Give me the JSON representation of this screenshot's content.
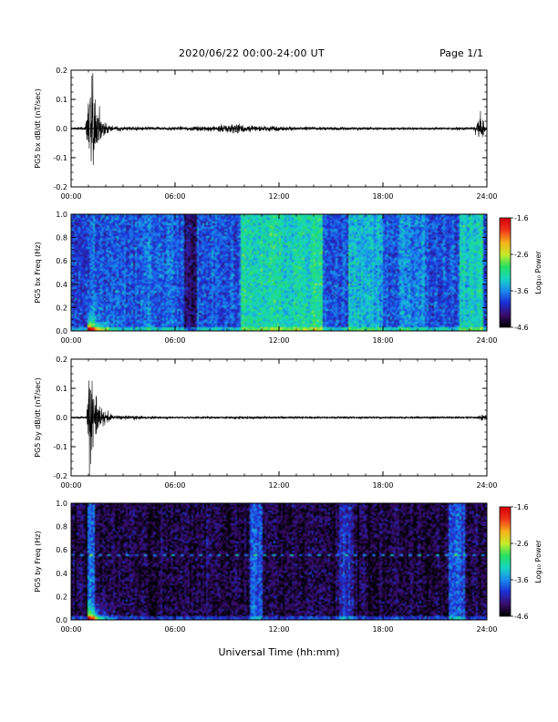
{
  "header": {
    "title": "2020/06/22  00:00-24:00 UT",
    "page": "Page 1/1"
  },
  "x_caption": "Universal Time (hh:mm)",
  "colormap": [
    "#000000",
    "#3a0d6e",
    "#1c2fd6",
    "#1a8cf0",
    "#17d6c2",
    "#27e060",
    "#c8ec2a",
    "#f6b21c",
    "#f0361a",
    "#d8000a"
  ],
  "chart_data": [
    {
      "type": "line",
      "ylabel": "PG5 bx dB/dt (nT/sec)",
      "x_ticks": [
        "00:00",
        "06:00",
        "12:00",
        "18:00",
        "24:00"
      ],
      "x_range_hours": [
        0,
        24
      ],
      "y_ticks": [
        "0.2",
        "0.1",
        "0.0",
        "-0.1",
        "-0.2"
      ],
      "ylim": [
        -0.2,
        0.2
      ],
      "envelope": [
        {
          "t": 0.0,
          "amp": 0.004
        },
        {
          "t": 0.8,
          "amp": 0.006
        },
        {
          "t": 0.95,
          "amp": 0.12
        },
        {
          "t": 1.15,
          "amp": 0.19
        },
        {
          "t": 1.4,
          "amp": 0.12
        },
        {
          "t": 1.8,
          "amp": 0.03
        },
        {
          "t": 2.5,
          "amp": 0.008
        },
        {
          "t": 6.0,
          "amp": 0.006
        },
        {
          "t": 8.0,
          "amp": 0.01
        },
        {
          "t": 9.5,
          "amp": 0.018
        },
        {
          "t": 10.5,
          "amp": 0.012
        },
        {
          "t": 13.0,
          "amp": 0.007
        },
        {
          "t": 18.0,
          "amp": 0.005
        },
        {
          "t": 23.2,
          "amp": 0.005
        },
        {
          "t": 23.6,
          "amp": 0.05
        },
        {
          "t": 24.0,
          "amp": 0.01
        }
      ]
    },
    {
      "type": "heatmap",
      "ylabel": "PG5 bx Freq (Hz)",
      "x_ticks": [
        "00:00",
        "06:00",
        "12:00",
        "18:00",
        "24:00"
      ],
      "y_ticks": [
        "1.0",
        "0.8",
        "0.6",
        "0.4",
        "0.2",
        "0.0"
      ],
      "ylim": [
        0.0,
        1.0
      ],
      "colorbar": {
        "label": "Log₁₀ Power",
        "ticks": [
          "-1.6",
          "-2.6",
          "-3.6",
          "-4.6"
        ],
        "range": [
          -4.6,
          -1.6
        ]
      },
      "base_level": -3.8,
      "bands": [
        {
          "t0": 0.0,
          "t1": 1.0,
          "level": -3.9
        },
        {
          "t0": 4.0,
          "t1": 6.0,
          "level": -3.7
        },
        {
          "t0": 6.5,
          "t1": 7.2,
          "level": -4.3
        },
        {
          "t0": 9.8,
          "t1": 14.5,
          "level": -3.2
        },
        {
          "t0": 16.0,
          "t1": 18.0,
          "level": -3.4
        },
        {
          "t0": 19.0,
          "t1": 20.5,
          "level": -3.6
        },
        {
          "t0": 22.5,
          "t1": 23.8,
          "level": -3.3
        }
      ],
      "burst": {
        "t": 1.1,
        "level": -1.8
      }
    },
    {
      "type": "line",
      "ylabel": "PG5 by dB/dt (nT/sec)",
      "x_ticks": [
        "00:00",
        "06:00",
        "12:00",
        "18:00",
        "24:00"
      ],
      "x_range_hours": [
        0,
        24
      ],
      "y_ticks": [
        "0.2",
        "0.1",
        "0.0",
        "-0.1",
        "-0.2"
      ],
      "ylim": [
        -0.2,
        0.2
      ],
      "envelope": [
        {
          "t": 0.0,
          "amp": 0.003
        },
        {
          "t": 0.9,
          "amp": 0.005
        },
        {
          "t": 1.05,
          "amp": 0.19
        },
        {
          "t": 1.3,
          "amp": 0.13
        },
        {
          "t": 1.7,
          "amp": 0.04
        },
        {
          "t": 2.4,
          "amp": 0.008
        },
        {
          "t": 6.0,
          "amp": 0.004
        },
        {
          "t": 10.0,
          "amp": 0.005
        },
        {
          "t": 18.0,
          "amp": 0.004
        },
        {
          "t": 23.4,
          "amp": 0.004
        },
        {
          "t": 23.7,
          "amp": 0.012
        },
        {
          "t": 24.0,
          "amp": 0.006
        }
      ]
    },
    {
      "type": "heatmap",
      "ylabel": "PG5 by Freq (Hz)",
      "x_ticks": [
        "00:00",
        "06:00",
        "12:00",
        "18:00",
        "24:00"
      ],
      "y_ticks": [
        "1.0",
        "0.8",
        "0.6",
        "0.4",
        "0.2",
        "0.0"
      ],
      "ylim": [
        0.0,
        1.0
      ],
      "colorbar": {
        "label": "Log₁₀ Power",
        "ticks": [
          "-1.6",
          "-2.6",
          "-3.6",
          "-4.6"
        ],
        "range": [
          -4.6,
          -1.6
        ]
      },
      "base_level": -4.4,
      "bands": [
        {
          "t0": 0.9,
          "t1": 1.3,
          "level": -3.7
        },
        {
          "t0": 10.3,
          "t1": 11.0,
          "level": -3.8
        },
        {
          "t0": 15.5,
          "t1": 16.3,
          "level": -4.0
        },
        {
          "t0": 21.8,
          "t1": 22.8,
          "level": -3.8
        }
      ],
      "burst": {
        "t": 1.1,
        "level": -2.0
      },
      "line_freq": 0.55
    }
  ]
}
